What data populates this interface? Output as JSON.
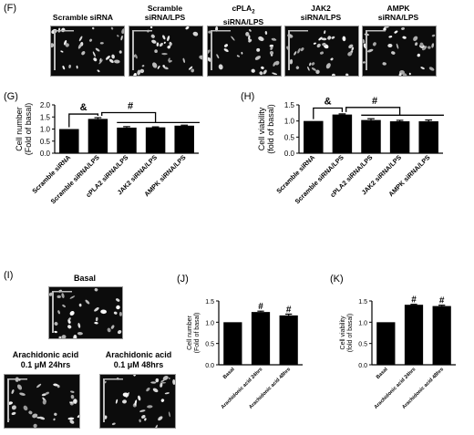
{
  "panel_F": {
    "letter": "(F)",
    "images": [
      {
        "label_line1": "Scramble siRNA",
        "label_line2": ""
      },
      {
        "label_line1": "Scramble",
        "label_line2": "siRNA/LPS"
      },
      {
        "label_line1": "cPLA",
        "label_sub": "2",
        "label_line2": "siRNA/LPS"
      },
      {
        "label_line1": "JAK2",
        "label_line2": "siRNA/LPS"
      },
      {
        "label_line1": "AMPK",
        "label_line2": "siRNA/LPS"
      }
    ]
  },
  "panel_I": {
    "letter": "(I)",
    "basal_label": "Basal",
    "aa24_line1": "Arachidonic acid",
    "aa24_line2": "0.1 μM 24hrs",
    "aa48_line1": "Arachidonic acid",
    "aa48_line2": "0.1 μM 48hrs"
  },
  "chart_data": [
    {
      "panel": "(G)",
      "type": "bar",
      "ylabel_line1": "Cell number",
      "ylabel_line2": "(Fold of basal)",
      "ylim": [
        0,
        2.0
      ],
      "yticks": [
        "0.0",
        "0.5",
        "1.0",
        "1.5",
        "2.0"
      ],
      "categories": [
        "Scramble siRNA",
        "Scramble siRNA/LPS",
        "cPLA2 siRNA/LPS",
        "JAK2 siRNA/LPS",
        "AMPK siRNA/LPS"
      ],
      "values": [
        1.0,
        1.42,
        1.06,
        1.07,
        1.14
      ],
      "errors": [
        0,
        0.05,
        0.04,
        0.02,
        0.02
      ],
      "annotations": [
        "&",
        "#"
      ]
    },
    {
      "panel": "(H)",
      "type": "bar",
      "ylabel_line1": "Cell viability",
      "ylabel_line2": "(fold of basal)",
      "ylim": [
        0,
        1.5
      ],
      "yticks": [
        "0.0",
        "0.5",
        "1.0",
        "1.5"
      ],
      "categories": [
        "Scramble siRNA",
        "Scramble siRNA/LPS",
        "cPLA2 siRNA/LPS",
        "JAK2 siRNA/LPS",
        "AMPK siRNA/LPS"
      ],
      "values": [
        1.0,
        1.2,
        1.03,
        0.99,
        0.99
      ],
      "errors": [
        0,
        0.02,
        0.04,
        0.03,
        0.04
      ],
      "annotations": [
        "&",
        "#"
      ]
    },
    {
      "panel": "(J)",
      "type": "bar",
      "ylabel_line1": "Cell number",
      "ylabel_line2": "(Fold of basal)",
      "ylim": [
        0,
        1.5
      ],
      "yticks": [
        "0.0",
        "0.5",
        "1.0",
        "1.5"
      ],
      "categories": [
        "Basal",
        "Arachidonic acid 24hrs",
        "Arachidonic acid 48hrs"
      ],
      "values": [
        1.0,
        1.24,
        1.16
      ],
      "errors": [
        0,
        0.02,
        0.03
      ],
      "annotations": [
        "#",
        "#"
      ]
    },
    {
      "panel": "(K)",
      "type": "bar",
      "ylabel_line1": "Cell viability",
      "ylabel_line2": "(fold of basal)",
      "ylim": [
        0,
        1.5
      ],
      "yticks": [
        "0.0",
        "0.5",
        "1.0",
        "1.5"
      ],
      "categories": [
        "Basal",
        "Arachidonic acid 24hrs",
        "Arachidonic acid 48hrs"
      ],
      "values": [
        1.0,
        1.41,
        1.38
      ],
      "errors": [
        0,
        0.01,
        0.02
      ],
      "annotations": [
        "#",
        "#"
      ]
    }
  ]
}
